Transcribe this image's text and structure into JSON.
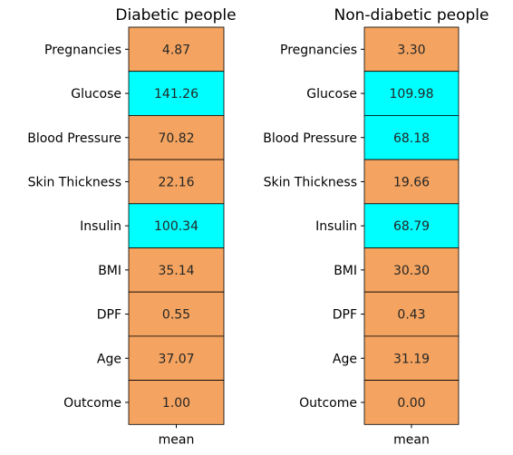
{
  "chart_data": [
    {
      "type": "heatmap",
      "title": "Diabetic people",
      "columns": [
        "mean"
      ],
      "rows": [
        "Pregnancies",
        "Glucose",
        "Blood Pressure",
        "Skin Thickness",
        "Insulin",
        "BMI",
        "DPF",
        "Age",
        "Outcome"
      ],
      "values": [
        4.87,
        141.26,
        70.82,
        22.16,
        100.34,
        35.14,
        0.55,
        37.07,
        1.0
      ],
      "labels": [
        "4.87",
        "141.26",
        "70.82",
        "22.16",
        "100.34",
        "35.14",
        "0.55",
        "37.07",
        "1.00"
      ],
      "highlight": [
        false,
        true,
        false,
        false,
        true,
        false,
        false,
        false,
        false
      ]
    },
    {
      "type": "heatmap",
      "title": "Non-diabetic people",
      "columns": [
        "mean"
      ],
      "rows": [
        "Pregnancies",
        "Glucose",
        "Blood Pressure",
        "Skin Thickness",
        "Insulin",
        "BMI",
        "DPF",
        "Age",
        "Outcome"
      ],
      "values": [
        3.3,
        109.98,
        68.18,
        19.66,
        68.79,
        30.3,
        0.43,
        31.19,
        0.0
      ],
      "labels": [
        "3.30",
        "109.98",
        "68.18",
        "19.66",
        "68.79",
        "30.30",
        "0.43",
        "31.19",
        "0.00"
      ],
      "highlight": [
        false,
        true,
        true,
        false,
        true,
        false,
        false,
        false,
        false
      ]
    }
  ],
  "colors": {
    "base": "#F4A460",
    "highlight": "#00FFFF",
    "line": "#000000"
  }
}
